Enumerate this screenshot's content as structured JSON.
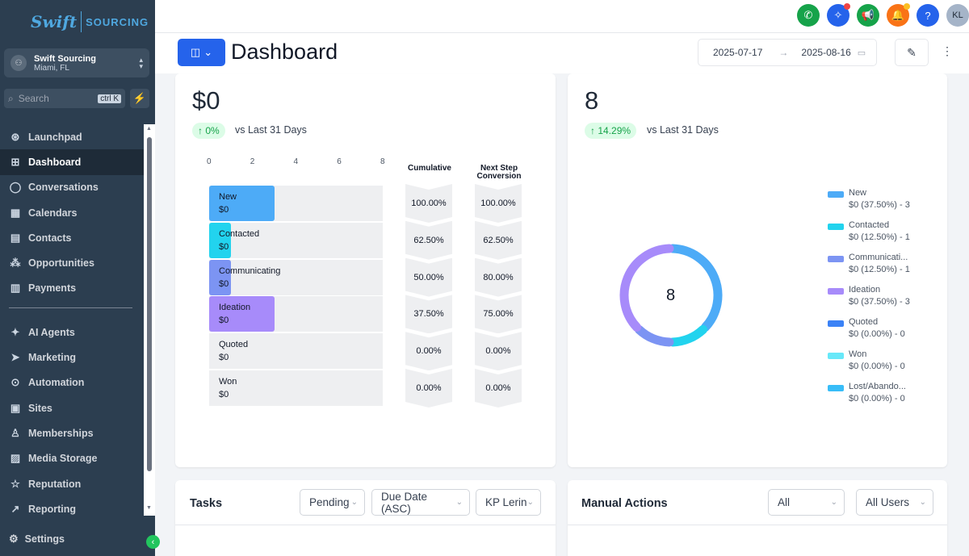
{
  "brand": {
    "name_left": "Swift",
    "name_right": "SOURCING"
  },
  "location": {
    "initials": "⚇",
    "name": "Swift Sourcing",
    "city": "Miami, FL"
  },
  "search": {
    "placeholder": "Search",
    "shortcut": "ctrl K"
  },
  "nav": {
    "primary": [
      {
        "label": "Launchpad",
        "icon": "rocket-icon"
      },
      {
        "label": "Dashboard",
        "icon": "grid-icon",
        "active": true
      },
      {
        "label": "Conversations",
        "icon": "chat-icon"
      },
      {
        "label": "Calendars",
        "icon": "calendar-icon"
      },
      {
        "label": "Contacts",
        "icon": "contacts-icon"
      },
      {
        "label": "Opportunities",
        "icon": "opportunities-icon"
      },
      {
        "label": "Payments",
        "icon": "payments-icon"
      }
    ],
    "secondary": [
      {
        "label": "AI Agents",
        "icon": "sparkle-icon"
      },
      {
        "label": "Marketing",
        "icon": "send-icon"
      },
      {
        "label": "Automation",
        "icon": "automation-icon"
      },
      {
        "label": "Sites",
        "icon": "sites-icon"
      },
      {
        "label": "Memberships",
        "icon": "memberships-icon"
      },
      {
        "label": "Media Storage",
        "icon": "image-icon"
      },
      {
        "label": "Reputation",
        "icon": "star-icon"
      },
      {
        "label": "Reporting",
        "icon": "chart-icon"
      }
    ],
    "settings": "Settings"
  },
  "topbar": {
    "avatar": "KL",
    "colors": {
      "phone": "#16a34a",
      "magic": "#2563eb",
      "megaphone": "#16a34a",
      "bell": "#f97316",
      "help": "#2563eb",
      "avatar": "#a5b4c8"
    }
  },
  "header": {
    "title": "Dashboard",
    "date_from": "2025-07-17",
    "date_to": "2025-08-16"
  },
  "funnel_card": {
    "value": "$0",
    "change": "0%",
    "vs_text": "vs Last 31 Days",
    "axis_ticks": [
      "0",
      "2",
      "4",
      "6",
      "8"
    ],
    "col_cumulative": "Cumulative",
    "col_next_line1": "Next Step",
    "col_next_line2": "Conversion",
    "stages": [
      {
        "name": "New",
        "value": "$0",
        "count": 3,
        "color": "#4dabf7",
        "cumulative": "100.00%",
        "next": "100.00%"
      },
      {
        "name": "Contacted",
        "value": "$0",
        "count": 1,
        "color": "#22d3ee",
        "cumulative": "62.50%",
        "next": "62.50%"
      },
      {
        "name": "Communicating",
        "value": "$0",
        "count": 1,
        "color": "#7c94f3",
        "cumulative": "50.00%",
        "next": "80.00%"
      },
      {
        "name": "Ideation",
        "value": "$0",
        "count": 3,
        "color": "#a78bfa",
        "cumulative": "37.50%",
        "next": "75.00%"
      },
      {
        "name": "Quoted",
        "value": "$0",
        "count": 0,
        "color": "#3b82f6",
        "cumulative": "0.00%",
        "next": "0.00%"
      },
      {
        "name": "Won",
        "value": "$0",
        "count": 0,
        "color": "#67e8f9",
        "cumulative": "0.00%",
        "next": "0.00%"
      }
    ]
  },
  "donut_card": {
    "value": "8",
    "change": "14.29%",
    "vs_text": "vs Last 31 Days",
    "center": "8",
    "legend": [
      {
        "name": "New",
        "detail": "$0 (37.50%) - 3",
        "color": "#4dabf7"
      },
      {
        "name": "Contacted",
        "detail": "$0 (12.50%) - 1",
        "color": "#22d3ee"
      },
      {
        "name": "Communicati...",
        "detail": "$0 (12.50%) - 1",
        "color": "#7c94f3"
      },
      {
        "name": "Ideation",
        "detail": "$0 (37.50%) - 3",
        "color": "#a78bfa"
      },
      {
        "name": "Quoted",
        "detail": "$0 (0.00%) - 0",
        "color": "#3b82f6"
      },
      {
        "name": "Won",
        "detail": "$0 (0.00%) - 0",
        "color": "#67e8f9"
      },
      {
        "name": "Lost/Abando...",
        "detail": "$0 (0.00%) - 0",
        "color": "#38bdf8"
      }
    ]
  },
  "chart_data": [
    {
      "type": "bar",
      "categories": [
        "New",
        "Contacted",
        "Communicating",
        "Ideation",
        "Quoted",
        "Won"
      ],
      "values": [
        3,
        1,
        1,
        3,
        0,
        0
      ],
      "xlim": [
        0,
        8
      ]
    },
    {
      "type": "pie",
      "categories": [
        "New",
        "Contacted",
        "Communicating",
        "Ideation",
        "Quoted",
        "Won",
        "Lost/Abandoned"
      ],
      "values": [
        3,
        1,
        1,
        3,
        0,
        0,
        0
      ]
    }
  ],
  "tasks": {
    "title": "Tasks",
    "filter_status": "Pending",
    "filter_sort": "Due Date (ASC)",
    "filter_user": "KP Lerin"
  },
  "manual_actions": {
    "title": "Manual Actions",
    "filter_type": "All",
    "filter_user": "All Users"
  }
}
